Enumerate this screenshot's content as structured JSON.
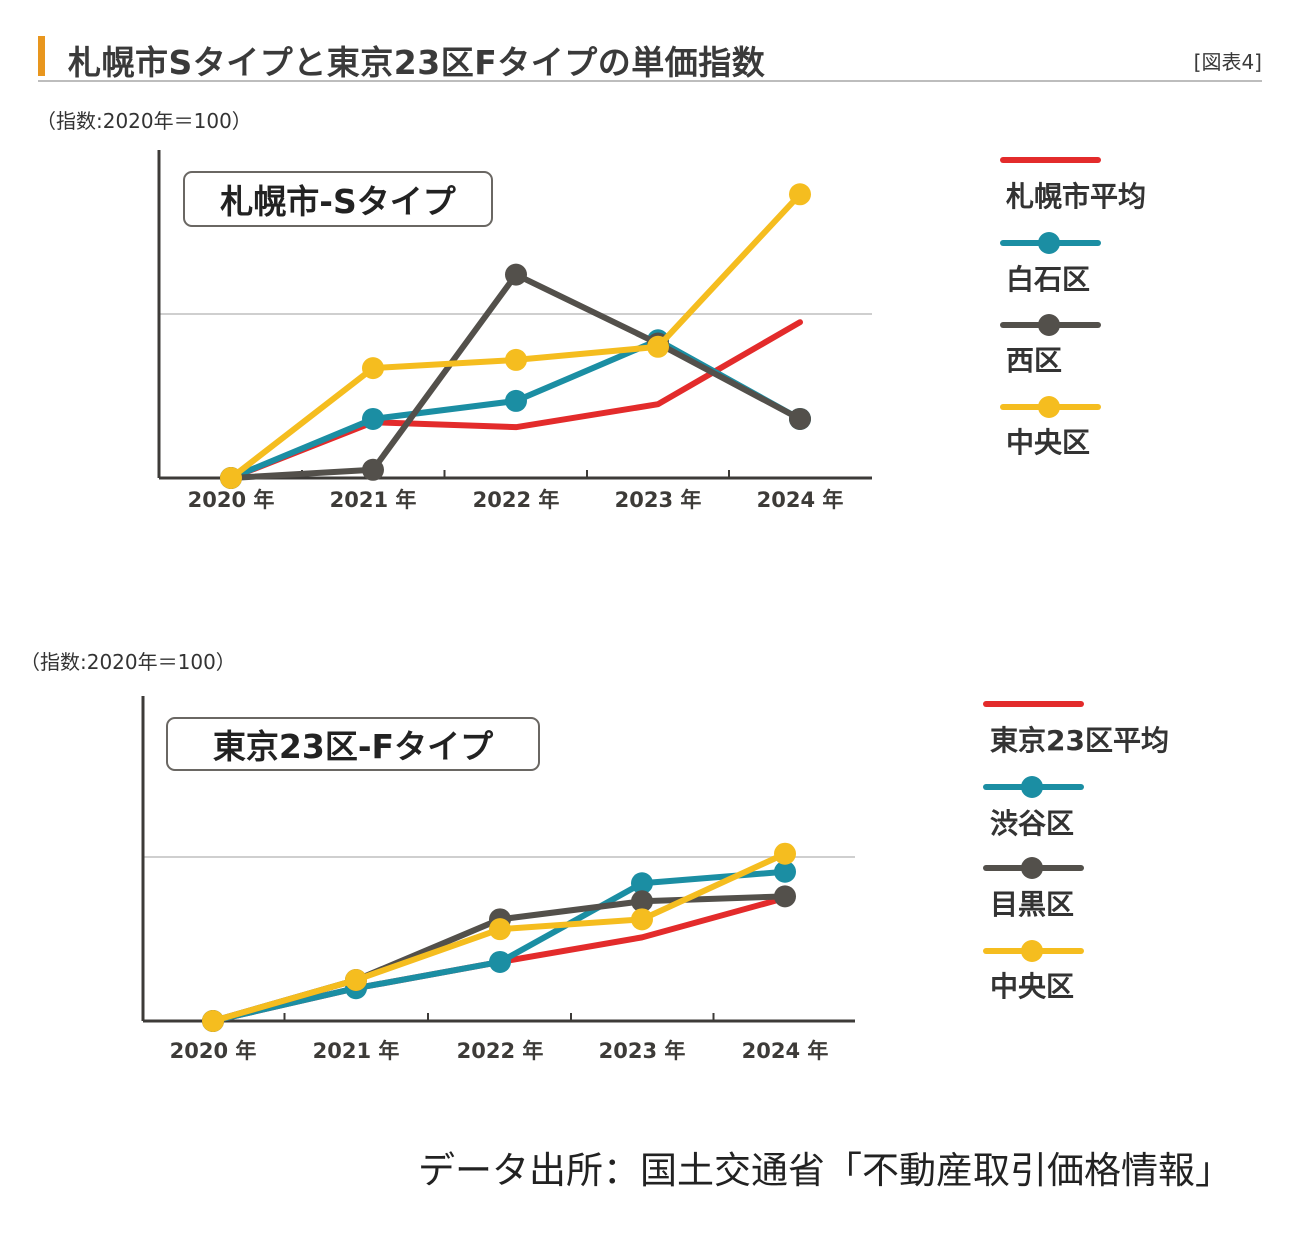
{
  "header": {
    "title": "札幌市Sタイプと東京23区Fタイプの単価指数",
    "ref": "[図表4]",
    "accent_color": "#e8961e"
  },
  "colors": {
    "red": "#e32b2b",
    "teal": "#1b8ea3",
    "dark": "#53504b",
    "yellow": "#f5bd1f",
    "axis": "#3d3b38",
    "grid": "#cfcfcf"
  },
  "chart_data": [
    {
      "type": "line",
      "title": "札幌市-Sタイプ",
      "unit_note": "（指数:2020年＝100）",
      "categories": [
        "2020 年",
        "2021 年",
        "2022 年",
        "2023 年",
        "2024 年"
      ],
      "ylim": [
        100,
        120
      ],
      "reference_line": 110,
      "legend_position": "right",
      "series": [
        {
          "name": "札幌市平均",
          "color": "#e32b2b",
          "markers": false,
          "values": [
            100,
            103.4,
            103.1,
            104.5,
            109.5
          ]
        },
        {
          "name": "白石区",
          "color": "#1b8ea3",
          "markers": true,
          "values": [
            100,
            103.6,
            104.7,
            108.4,
            103.6
          ]
        },
        {
          "name": "西区",
          "color": "#53504b",
          "markers": true,
          "values": [
            100,
            100.5,
            112.4,
            108.2,
            103.6
          ]
        },
        {
          "name": "中央区",
          "color": "#f5bd1f",
          "markers": true,
          "values": [
            100,
            106.7,
            107.2,
            108.0,
            117.3
          ]
        }
      ]
    },
    {
      "type": "line",
      "title": "東京23区-Fタイプ",
      "unit_note": "（指数:2020年＝100）",
      "categories": [
        "2020 年",
        "2021 年",
        "2022 年",
        "2023 年",
        "2024 年"
      ],
      "ylim": [
        100,
        120
      ],
      "reference_line": 110,
      "legend_position": "right",
      "series": [
        {
          "name": "東京23区平均",
          "color": "#e32b2b",
          "markers": false,
          "values": [
            100,
            102.0,
            103.6,
            105.1,
            107.5
          ]
        },
        {
          "name": "渋谷区",
          "color": "#1b8ea3",
          "markers": true,
          "values": [
            100,
            102.0,
            103.6,
            108.4,
            109.1
          ]
        },
        {
          "name": "目黒区",
          "color": "#53504b",
          "markers": true,
          "values": [
            100,
            102.5,
            106.2,
            107.3,
            107.6
          ]
        },
        {
          "name": "中央区",
          "color": "#f5bd1f",
          "markers": true,
          "values": [
            100,
            102.5,
            105.6,
            106.2,
            110.2
          ]
        }
      ]
    }
  ],
  "footer": {
    "source": "データ出所：国土交通省「不動産取引価格情報」"
  }
}
